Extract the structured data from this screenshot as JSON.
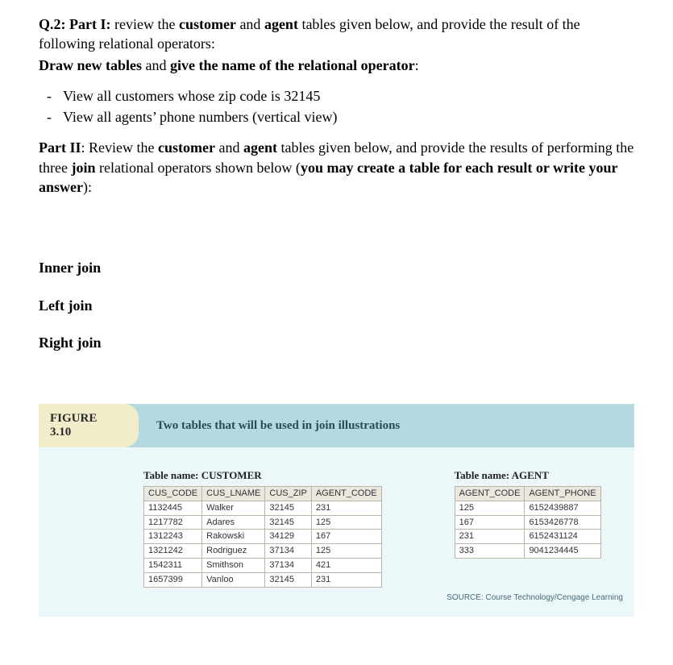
{
  "question": {
    "prefix": "Q.2: Part I:",
    "seg1": " review the ",
    "b1": "customer",
    "seg2": " and ",
    "b2": "agent",
    "seg3": " tables given below, and provide the result of the following relational operators:",
    "line2a": "Draw new tables",
    "line2b": " and ",
    "line2c": "give the name of the relational operator",
    "line2d": ":"
  },
  "bullets": [
    "View all customers whose zip code is 32145",
    "View all agents’ phone numbers (vertical view)"
  ],
  "part2": {
    "prefix": "Part II",
    "seg1": ": Review the ",
    "b1": "customer",
    "seg2": " and ",
    "b2": "agent",
    "seg3": " tables given below, and provide the results of performing the three ",
    "b3": "join",
    "seg4": " relational operators shown below (",
    "b4": "you may create a table for each result or write your answer",
    "seg5": "):"
  },
  "joins": [
    "Inner join",
    "Left join",
    "Right join"
  ],
  "figure": {
    "badge_line1": "FIGURE",
    "badge_line2": "3.10",
    "title": "Two tables that will be used in join illustrations",
    "source": "SOURCE: Course Technology/Cengage Learning"
  },
  "customer": {
    "caption": "Table name: CUSTOMER",
    "headers": [
      "CUS_CODE",
      "CUS_LNAME",
      "CUS_ZIP",
      "AGENT_CODE"
    ],
    "rows": [
      [
        "1132445",
        "Walker",
        "32145",
        "231"
      ],
      [
        "1217782",
        "Adares",
        "32145",
        "125"
      ],
      [
        "1312243",
        "Rakowski",
        "34129",
        "167"
      ],
      [
        "1321242",
        "Rodriguez",
        "37134",
        "125"
      ],
      [
        "1542311",
        "Smithson",
        "37134",
        "421"
      ],
      [
        "1657399",
        "Vanloo",
        "32145",
        "231"
      ]
    ]
  },
  "agent": {
    "caption": "Table name: AGENT",
    "headers": [
      "AGENT_CODE",
      "AGENT_PHONE"
    ],
    "rows": [
      [
        "125",
        "6152439887"
      ],
      [
        "167",
        "6153426778"
      ],
      [
        "231",
        "6152431124"
      ],
      [
        "333",
        "9041234445"
      ]
    ]
  }
}
